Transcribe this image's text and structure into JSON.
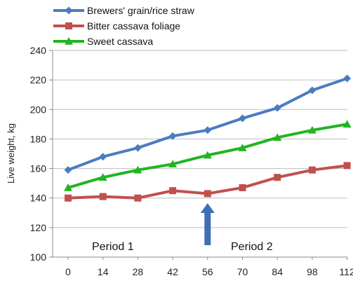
{
  "chart_data": {
    "type": "line",
    "x": [
      0,
      14,
      28,
      42,
      56,
      70,
      84,
      98,
      112
    ],
    "x_tick_labels": [
      "0",
      "14",
      "28",
      "42",
      "56",
      "70",
      "84",
      "98",
      "112"
    ],
    "series": [
      {
        "name": "Brewers' grain/rice straw",
        "color": "#4a7cc2",
        "marker": "diamond",
        "values": [
          159,
          168,
          174,
          182,
          186,
          194,
          201,
          213,
          221
        ]
      },
      {
        "name": "Bitter cassava foliage",
        "color": "#c0504d",
        "marker": "square",
        "values": [
          140,
          141,
          140,
          145,
          143,
          147,
          154,
          159,
          162
        ]
      },
      {
        "name": "Sweet cassava",
        "color": "#21b521",
        "marker": "triangle",
        "values": [
          147,
          154,
          159,
          163,
          169,
          174,
          181,
          186,
          190
        ]
      }
    ],
    "ylabel": "Live weight, kg",
    "xlabel": "",
    "ylim": [
      100,
      240
    ],
    "yticks": [
      100,
      120,
      140,
      160,
      180,
      200,
      220,
      240
    ],
    "grid": true,
    "legend_position": "top",
    "annotations": [
      {
        "text": "Period 1"
      },
      {
        "text": "Period 2"
      }
    ],
    "arrow": {
      "at_x": 56,
      "color": "#3d6fb5",
      "direction": "up"
    }
  }
}
